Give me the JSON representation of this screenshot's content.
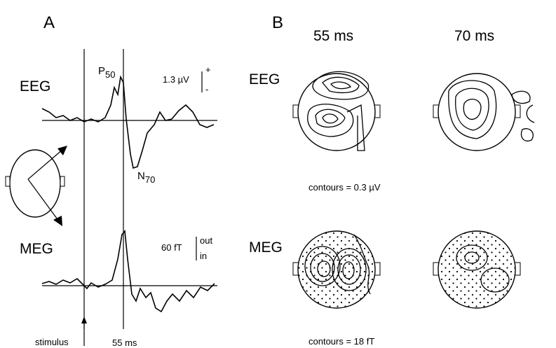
{
  "panel_a": {
    "label": "A",
    "eeg_label": "EEG",
    "meg_label": "MEG",
    "p_peak": {
      "letter": "P",
      "sub": "50"
    },
    "n_peak": {
      "letter": "N",
      "sub": "70"
    },
    "eeg_scale": {
      "amount": "1.3 µV",
      "up": "+",
      "down": "-"
    },
    "meg_scale": {
      "amount": "60 fT",
      "up": "out",
      "down": "in"
    },
    "stimulus": "stimulus",
    "latency": "55 ms"
  },
  "panel_b": {
    "label": "B",
    "columns": [
      "55 ms",
      "70 ms"
    ],
    "rows": [
      "EEG",
      "MEG"
    ],
    "captions": [
      "contours = 0.3 µV",
      "contours = 18 fT"
    ]
  }
}
